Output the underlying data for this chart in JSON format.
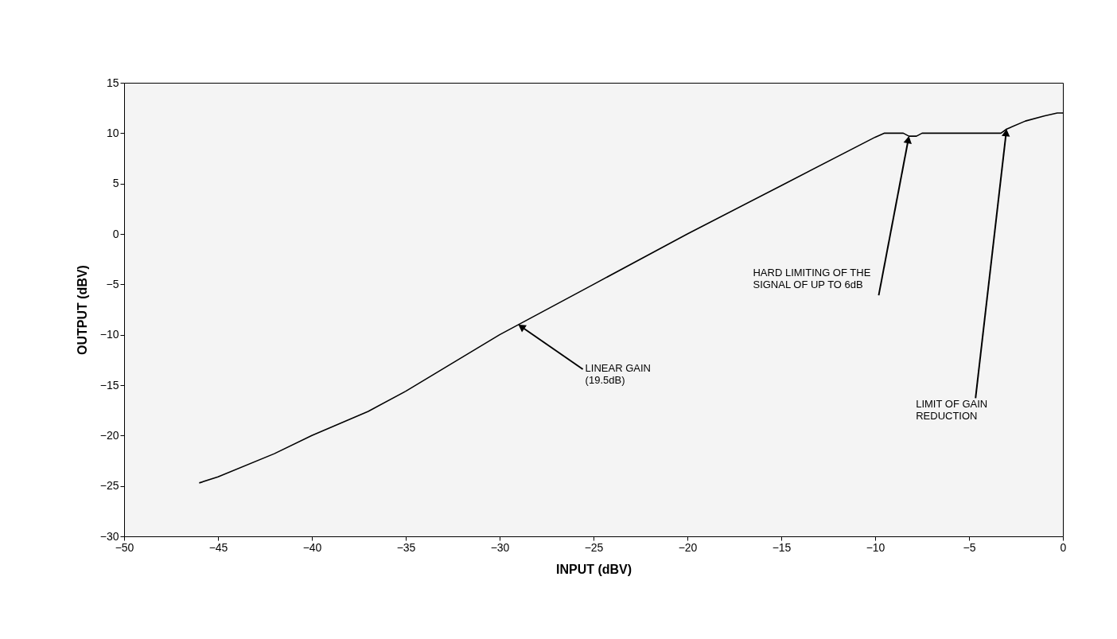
{
  "chart_data": {
    "type": "line",
    "xlabel": "INPUT (dBV)",
    "ylabel": "OUTPUT (dBV)",
    "x": [
      -46,
      -45,
      -42,
      -40,
      -37,
      -35,
      -30,
      -25,
      -20,
      -15,
      -10,
      -9.5,
      -8.5,
      -8.2,
      -7.8,
      -7.5,
      -3.3,
      -3,
      -2,
      -1,
      -0.3,
      0
    ],
    "series": [
      {
        "color": "#000000",
        "values": [
          -24.7,
          -24.1,
          -21.8,
          -20,
          -17.6,
          -15.6,
          -10,
          -5,
          0,
          4.8,
          9.6,
          10,
          10,
          9.7,
          9.7,
          10,
          10,
          10.4,
          11.2,
          11.7,
          12,
          12
        ]
      }
    ],
    "xlim": [
      -50,
      0
    ],
    "xticks": [
      -50,
      -45,
      -40,
      -35,
      -30,
      -25,
      -20,
      -15,
      -10,
      -5,
      0
    ],
    "ylim": [
      -30,
      15
    ],
    "yticks": [
      -30,
      -25,
      -20,
      -15,
      -10,
      -5,
      0,
      5,
      10,
      15
    ],
    "grid": false,
    "marker": "none",
    "line_style": "solid",
    "annotations": [
      {
        "text": "LINEAR GAIN\n(19.5dB)",
        "x": -29,
        "y": -9
      },
      {
        "text": "HARD LIMITING OF THE\nSIGNAL OF UP TO 6dB",
        "x": -8.2,
        "y": 9.7
      },
      {
        "text": "LIMIT OF GAIN\nREDUCTION",
        "x": -3,
        "y": 10.4
      }
    ]
  }
}
